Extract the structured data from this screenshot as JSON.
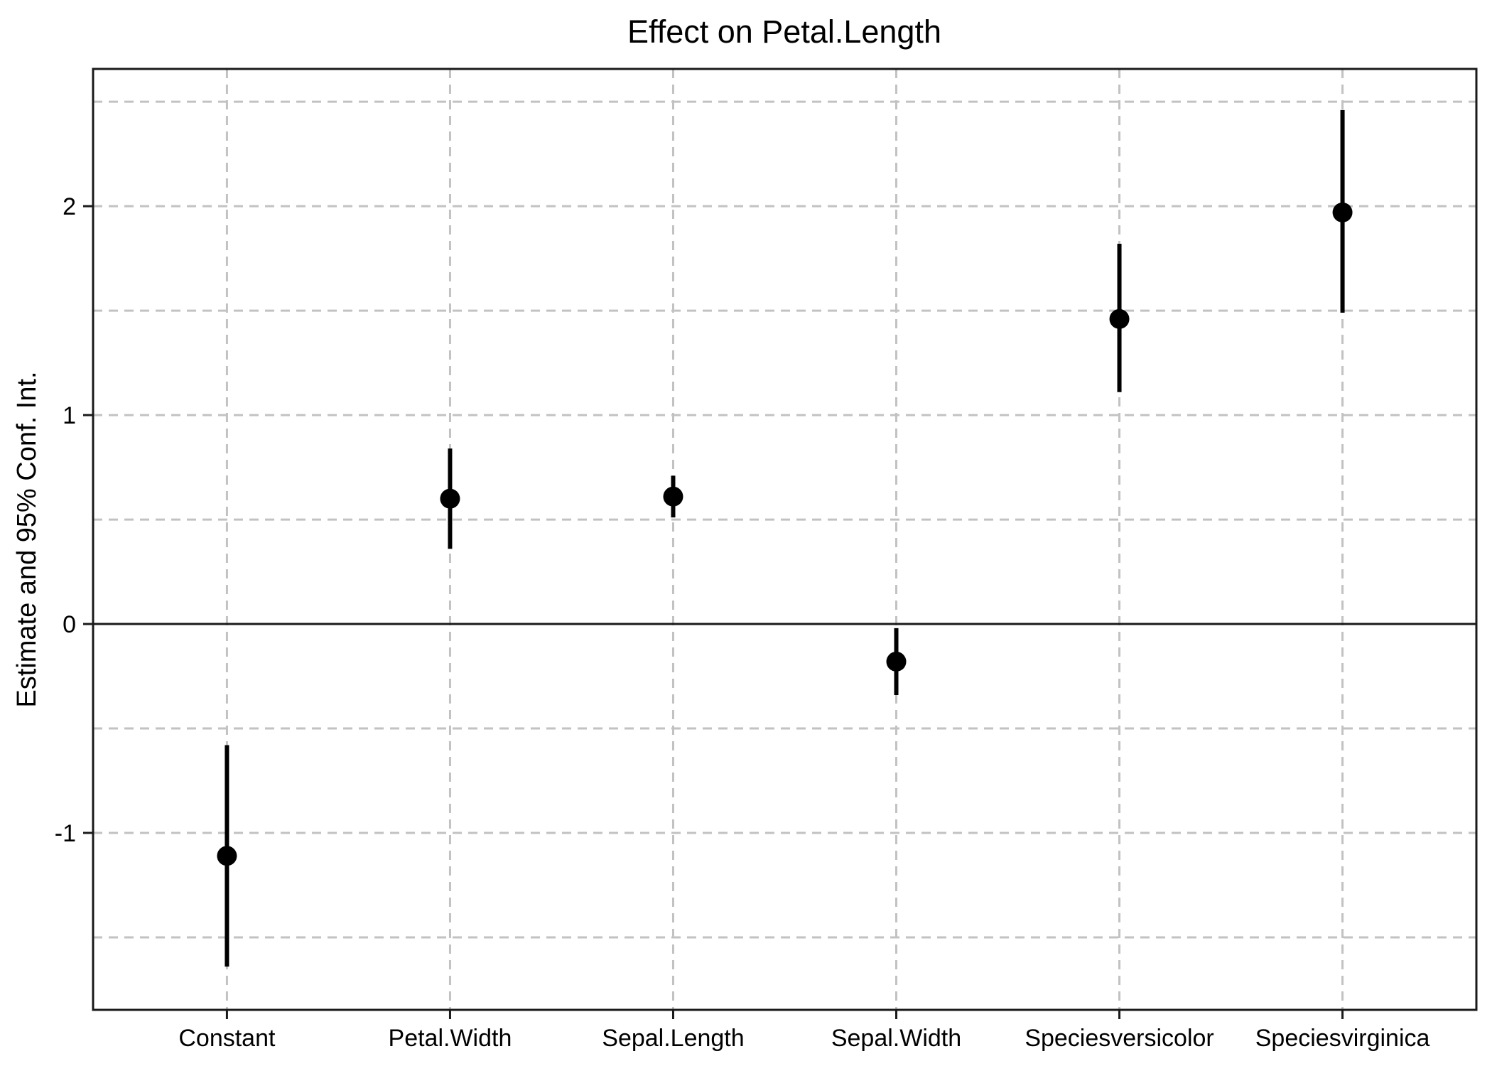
{
  "chart_data": {
    "type": "scatter",
    "subtype": "coefficient-errorbar-plot",
    "title": "Effect on Petal.Length",
    "xlabel": "",
    "ylabel": "Estimate and 95% Conf. Int.",
    "legend": "none",
    "grid": "dashed",
    "categories": [
      "Constant",
      "Petal.Width",
      "Sepal.Length",
      "Sepal.Width",
      "Speciesversicolor",
      "Speciesvirginica"
    ],
    "series": [
      {
        "name": "Estimate and 95% Conf. Int.",
        "points": [
          {
            "term": "Constant",
            "estimate": -1.11,
            "ci_low": -1.64,
            "ci_high": -0.58
          },
          {
            "term": "Petal.Width",
            "estimate": 0.6,
            "ci_low": 0.36,
            "ci_high": 0.84
          },
          {
            "term": "Sepal.Length",
            "estimate": 0.61,
            "ci_low": 0.51,
            "ci_high": 0.71
          },
          {
            "term": "Sepal.Width",
            "estimate": -0.18,
            "ci_low": -0.34,
            "ci_high": -0.02
          },
          {
            "term": "Speciesversicolor",
            "estimate": 1.46,
            "ci_low": 1.11,
            "ci_high": 1.82
          },
          {
            "term": "Speciesvirginica",
            "estimate": 1.97,
            "ci_low": 1.49,
            "ci_high": 2.46
          }
        ]
      }
    ],
    "yticks": [
      -1,
      0,
      1,
      2
    ],
    "ytick_labels": [
      "-1",
      "0",
      "1",
      "2"
    ],
    "gridlines_y": [
      -1.5,
      -1,
      -0.5,
      0.5,
      1,
      1.5,
      2,
      2.5
    ],
    "zero_line": 0,
    "ylim": [
      -1.847,
      2.657
    ],
    "colors": {
      "point": "#000000",
      "error_bar": "#000000",
      "grid": "#c2c2c2",
      "zero_line": "#1a1a1a",
      "panel_border": "#1a1a1a",
      "background": "#ffffff",
      "text": "#000000"
    }
  }
}
